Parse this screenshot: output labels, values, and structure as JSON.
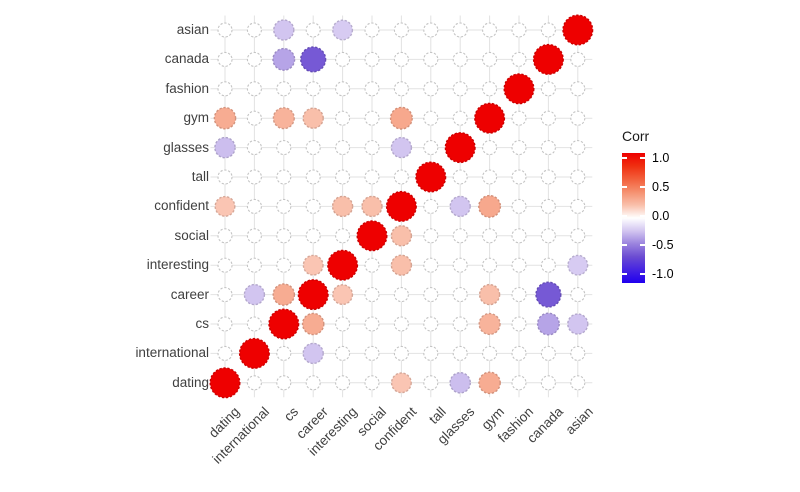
{
  "chart_data": {
    "type": "heatmap",
    "subtype": "correlogram-circles",
    "title": "",
    "variables_y": [
      "asian",
      "canada",
      "fashion",
      "gym",
      "glasses",
      "tall",
      "confident",
      "social",
      "interesting",
      "career",
      "cs",
      "international",
      "dating"
    ],
    "variables_x": [
      "dating",
      "international",
      "cs",
      "career",
      "interesting",
      "social",
      "confident",
      "tall",
      "glasses",
      "gym",
      "fashion",
      "canada",
      "asian"
    ],
    "diagonal_value": 1.0,
    "pairs": [
      {
        "a": "asian",
        "b": "cs",
        "r": -0.2
      },
      {
        "a": "asian",
        "b": "interesting",
        "r": -0.18
      },
      {
        "a": "canada",
        "b": "cs",
        "r": -0.3
      },
      {
        "a": "canada",
        "b": "career",
        "r": -0.55
      },
      {
        "a": "gym",
        "b": "dating",
        "r": 0.28
      },
      {
        "a": "gym",
        "b": "cs",
        "r": 0.25
      },
      {
        "a": "gym",
        "b": "career",
        "r": 0.2
      },
      {
        "a": "gym",
        "b": "confident",
        "r": 0.3
      },
      {
        "a": "glasses",
        "b": "dating",
        "r": -0.22
      },
      {
        "a": "glasses",
        "b": "confident",
        "r": -0.2
      },
      {
        "a": "confident",
        "b": "dating",
        "r": 0.18
      },
      {
        "a": "confident",
        "b": "interesting",
        "r": 0.2
      },
      {
        "a": "confident",
        "b": "social",
        "r": 0.2
      },
      {
        "a": "interesting",
        "b": "career",
        "r": 0.18
      },
      {
        "a": "career",
        "b": "cs",
        "r": 0.28
      },
      {
        "a": "career",
        "b": "international",
        "r": -0.2
      }
    ],
    "legend": {
      "title": "Corr",
      "tick_labels": [
        "1.0",
        "0.5",
        "0.0",
        "-0.5",
        "-1.0"
      ],
      "tick_values": [
        1,
        0.5,
        0,
        -0.5,
        -1
      ],
      "range": [
        -1,
        1
      ]
    },
    "palette": {
      "positive_stops": [
        [
          0,
          "#FFFFFF"
        ],
        [
          0.2,
          "#F9BFAA"
        ],
        [
          0.4,
          "#F5906F"
        ],
        [
          0.6,
          "#F25F3B"
        ],
        [
          0.8,
          "#EF2F10"
        ],
        [
          1,
          "#EE0000"
        ]
      ],
      "negative_stops": [
        [
          0,
          "#FFFFFF"
        ],
        [
          0.2,
          "#D2C5F0"
        ],
        [
          0.4,
          "#9A82DE"
        ],
        [
          0.6,
          "#6A4BD2"
        ],
        [
          0.8,
          "#4523E2"
        ],
        [
          1,
          "#2000EE"
        ]
      ],
      "zero_fill": "#FFFFFF",
      "zero_stroke": "#C4C4C4",
      "grid_color": "#E2E2E2",
      "label_color": "#404040"
    },
    "grid": true,
    "legend_position": "right"
  }
}
